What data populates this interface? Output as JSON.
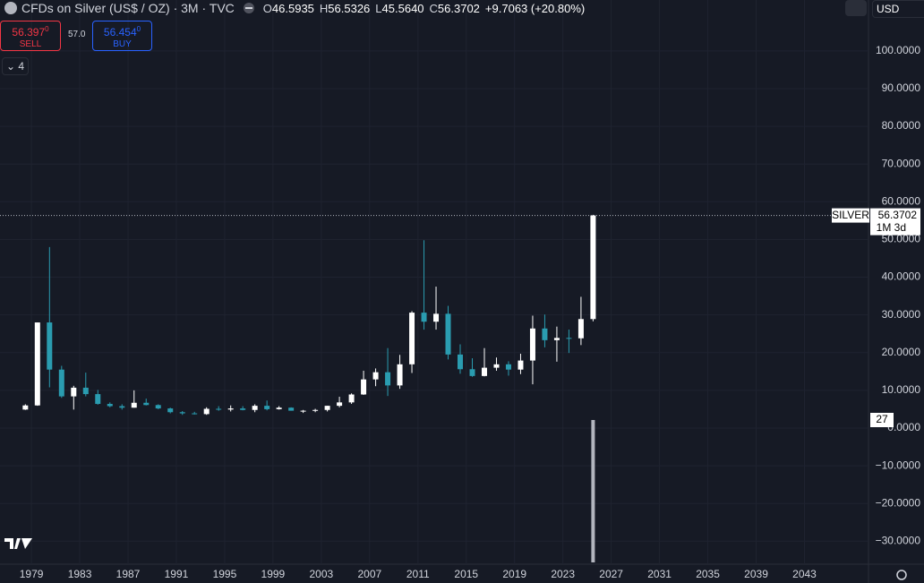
{
  "header": {
    "symbol": "CFDs on Silver (US$ / OZ) · 3M · TVC",
    "o_label": "O",
    "open": "46.5935",
    "h_label": "H",
    "high": "56.5326",
    "l_label": "L",
    "low": "45.5640",
    "c_label": "C",
    "close": "56.3702",
    "change": "+9.7063 (+20.80%)",
    "currency": "USD"
  },
  "trade": {
    "sell_price": "56.397",
    "sell_frac": "0",
    "sell": "SELL",
    "spread": "57.0",
    "buy_price": "56.454",
    "buy_frac": "0",
    "buy": "BUY",
    "indicators": "4"
  },
  "chart_data": {
    "type": "candlestick",
    "x": [
      1978,
      1979,
      1980,
      1981,
      1982,
      1983,
      1984,
      1985,
      1986,
      1987,
      1988,
      1989,
      1990,
      1991,
      1992,
      1993,
      1994,
      1995,
      1996,
      1997,
      1998,
      1999,
      2000,
      2001,
      2002,
      2003,
      2004,
      2005,
      2006,
      2007,
      2008,
      2009,
      2010,
      2011,
      2012,
      2013,
      2014,
      2015,
      2016,
      2017,
      2018,
      2019,
      2020,
      2021,
      2022,
      2023,
      2024,
      2025
    ],
    "open": [
      4.9,
      6.0,
      28,
      15.5,
      8.4,
      10.7,
      9.0,
      6.4,
      5.8,
      5.4,
      6.7,
      6.1,
      5.2,
      4.2,
      3.9,
      3.7,
      5.1,
      4.9,
      5.2,
      4.8,
      5.9,
      5.0,
      5.4,
      4.6,
      4.6,
      4.8,
      5.9,
      6.8,
      8.9,
      12.9,
      14.8,
      11.3,
      16.9,
      30.6,
      28.2,
      30.3,
      19.5,
      15.6,
      13.8,
      16.0,
      16.9,
      15.5,
      17.9,
      26.4,
      23.3,
      23.9,
      23.8,
      28.9
    ],
    "high": [
      6.3,
      28.0,
      48,
      16.5,
      11.2,
      14.7,
      10.1,
      6.8,
      6.3,
      10.0,
      7.8,
      6.3,
      5.4,
      4.5,
      4.3,
      5.5,
      5.8,
      6.0,
      5.8,
      6.3,
      7.3,
      5.8,
      5.5,
      4.8,
      5.1,
      5.9,
      8.3,
      9.2,
      15.2,
      15.8,
      21.2,
      19.4,
      31.0,
      49.8,
      37.5,
      32.4,
      22.2,
      18.5,
      21.2,
      18.7,
      17.7,
      19.7,
      29.8,
      30.1,
      26.9,
      26.1,
      34.8,
      56.5326
    ],
    "low": [
      4.8,
      5.9,
      10.8,
      8.0,
      4.9,
      8.4,
      6.2,
      5.5,
      4.9,
      5.4,
      6.0,
      5.0,
      3.9,
      3.5,
      3.6,
      3.5,
      4.6,
      4.4,
      4.7,
      4.2,
      4.7,
      4.9,
      4.6,
      4.0,
      4.2,
      4.4,
      5.5,
      6.4,
      8.8,
      11.1,
      8.5,
      10.4,
      14.6,
      26.1,
      26.1,
      18.2,
      14.4,
      13.6,
      13.7,
      15.2,
      13.9,
      14.3,
      11.6,
      21.4,
      17.6,
      19.9,
      22.0,
      28.3
    ],
    "close": [
      6.0,
      28.0,
      15.5,
      8.4,
      10.7,
      9.0,
      6.4,
      5.8,
      5.4,
      6.7,
      6.1,
      5.2,
      4.2,
      3.9,
      3.7,
      5.1,
      4.9,
      5.2,
      4.8,
      5.9,
      5.0,
      5.4,
      4.6,
      4.6,
      4.8,
      5.9,
      6.8,
      8.9,
      12.9,
      14.8,
      11.3,
      16.9,
      30.6,
      28.2,
      30.3,
      19.5,
      15.6,
      13.8,
      16.0,
      16.9,
      15.5,
      17.9,
      26.4,
      23.3,
      23.9,
      23.8,
      28.9,
      56.3702
    ],
    "up_color": "#ffffff",
    "down_color": "#2a9cb0",
    "xlim": [
      1976.4,
      2048.3
    ],
    "xticks": [
      1979,
      1983,
      1987,
      1991,
      1995,
      1999,
      2003,
      2007,
      2011,
      2015,
      2019,
      2023,
      2027,
      2031,
      2035,
      2039,
      {
        "value": 2043,
        "label": "2043"
      }
    ],
    "ylim": [
      -36.1,
      113.5
    ],
    "yticks": [
      {
        "value": -30,
        "label": "−30.0000"
      },
      {
        "value": -20,
        "label": "−20.0000"
      },
      {
        "value": -10,
        "label": "−10.0000"
      },
      {
        "value": 0,
        "label": "0.0000"
      },
      {
        "value": 10,
        "label": "10.0000"
      },
      {
        "value": 20,
        "label": "20.0000"
      },
      {
        "value": 30,
        "label": "30.0000"
      },
      {
        "value": 40,
        "label": "40.0000"
      },
      {
        "value": 50,
        "label": "50.0000"
      },
      {
        "value": 60,
        "label": "60.0000"
      },
      {
        "value": 70,
        "label": "70.0000"
      },
      {
        "value": 80,
        "label": "80.0000"
      },
      {
        "value": 90,
        "label": "90.0000"
      },
      {
        "value": 100,
        "label": "100.0000"
      }
    ],
    "grid": true,
    "price_line": {
      "label": "SILVER",
      "value": 56.3702,
      "countdown": "1M 3d"
    },
    "volume": 27,
    "volume_color": "#b2b5be"
  }
}
